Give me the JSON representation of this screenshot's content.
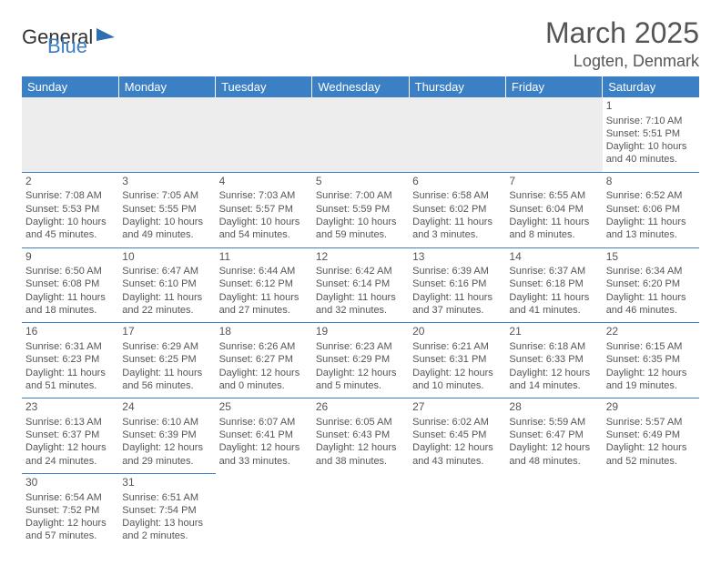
{
  "logo": {
    "general": "General",
    "blue": "Blue"
  },
  "header": {
    "month_title": "March 2025",
    "location": "Logten, Denmark"
  },
  "day_headers": [
    "Sunday",
    "Monday",
    "Tuesday",
    "Wednesday",
    "Thursday",
    "Friday",
    "Saturday"
  ],
  "colors": {
    "header_bg": "#3b7fc4",
    "header_text": "#ffffff",
    "cell_text": "#555555",
    "row_border": "#3b7fc4",
    "empty_bg": "#ededed"
  },
  "weeks": [
    [
      null,
      null,
      null,
      null,
      null,
      null,
      {
        "day": "1",
        "sunrise": "Sunrise: 7:10 AM",
        "sunset": "Sunset: 5:51 PM",
        "daylight1": "Daylight: 10 hours",
        "daylight2": "and 40 minutes."
      }
    ],
    [
      {
        "day": "2",
        "sunrise": "Sunrise: 7:08 AM",
        "sunset": "Sunset: 5:53 PM",
        "daylight1": "Daylight: 10 hours",
        "daylight2": "and 45 minutes."
      },
      {
        "day": "3",
        "sunrise": "Sunrise: 7:05 AM",
        "sunset": "Sunset: 5:55 PM",
        "daylight1": "Daylight: 10 hours",
        "daylight2": "and 49 minutes."
      },
      {
        "day": "4",
        "sunrise": "Sunrise: 7:03 AM",
        "sunset": "Sunset: 5:57 PM",
        "daylight1": "Daylight: 10 hours",
        "daylight2": "and 54 minutes."
      },
      {
        "day": "5",
        "sunrise": "Sunrise: 7:00 AM",
        "sunset": "Sunset: 5:59 PM",
        "daylight1": "Daylight: 10 hours",
        "daylight2": "and 59 minutes."
      },
      {
        "day": "6",
        "sunrise": "Sunrise: 6:58 AM",
        "sunset": "Sunset: 6:02 PM",
        "daylight1": "Daylight: 11 hours",
        "daylight2": "and 3 minutes."
      },
      {
        "day": "7",
        "sunrise": "Sunrise: 6:55 AM",
        "sunset": "Sunset: 6:04 PM",
        "daylight1": "Daylight: 11 hours",
        "daylight2": "and 8 minutes."
      },
      {
        "day": "8",
        "sunrise": "Sunrise: 6:52 AM",
        "sunset": "Sunset: 6:06 PM",
        "daylight1": "Daylight: 11 hours",
        "daylight2": "and 13 minutes."
      }
    ],
    [
      {
        "day": "9",
        "sunrise": "Sunrise: 6:50 AM",
        "sunset": "Sunset: 6:08 PM",
        "daylight1": "Daylight: 11 hours",
        "daylight2": "and 18 minutes."
      },
      {
        "day": "10",
        "sunrise": "Sunrise: 6:47 AM",
        "sunset": "Sunset: 6:10 PM",
        "daylight1": "Daylight: 11 hours",
        "daylight2": "and 22 minutes."
      },
      {
        "day": "11",
        "sunrise": "Sunrise: 6:44 AM",
        "sunset": "Sunset: 6:12 PM",
        "daylight1": "Daylight: 11 hours",
        "daylight2": "and 27 minutes."
      },
      {
        "day": "12",
        "sunrise": "Sunrise: 6:42 AM",
        "sunset": "Sunset: 6:14 PM",
        "daylight1": "Daylight: 11 hours",
        "daylight2": "and 32 minutes."
      },
      {
        "day": "13",
        "sunrise": "Sunrise: 6:39 AM",
        "sunset": "Sunset: 6:16 PM",
        "daylight1": "Daylight: 11 hours",
        "daylight2": "and 37 minutes."
      },
      {
        "day": "14",
        "sunrise": "Sunrise: 6:37 AM",
        "sunset": "Sunset: 6:18 PM",
        "daylight1": "Daylight: 11 hours",
        "daylight2": "and 41 minutes."
      },
      {
        "day": "15",
        "sunrise": "Sunrise: 6:34 AM",
        "sunset": "Sunset: 6:20 PM",
        "daylight1": "Daylight: 11 hours",
        "daylight2": "and 46 minutes."
      }
    ],
    [
      {
        "day": "16",
        "sunrise": "Sunrise: 6:31 AM",
        "sunset": "Sunset: 6:23 PM",
        "daylight1": "Daylight: 11 hours",
        "daylight2": "and 51 minutes."
      },
      {
        "day": "17",
        "sunrise": "Sunrise: 6:29 AM",
        "sunset": "Sunset: 6:25 PM",
        "daylight1": "Daylight: 11 hours",
        "daylight2": "and 56 minutes."
      },
      {
        "day": "18",
        "sunrise": "Sunrise: 6:26 AM",
        "sunset": "Sunset: 6:27 PM",
        "daylight1": "Daylight: 12 hours",
        "daylight2": "and 0 minutes."
      },
      {
        "day": "19",
        "sunrise": "Sunrise: 6:23 AM",
        "sunset": "Sunset: 6:29 PM",
        "daylight1": "Daylight: 12 hours",
        "daylight2": "and 5 minutes."
      },
      {
        "day": "20",
        "sunrise": "Sunrise: 6:21 AM",
        "sunset": "Sunset: 6:31 PM",
        "daylight1": "Daylight: 12 hours",
        "daylight2": "and 10 minutes."
      },
      {
        "day": "21",
        "sunrise": "Sunrise: 6:18 AM",
        "sunset": "Sunset: 6:33 PM",
        "daylight1": "Daylight: 12 hours",
        "daylight2": "and 14 minutes."
      },
      {
        "day": "22",
        "sunrise": "Sunrise: 6:15 AM",
        "sunset": "Sunset: 6:35 PM",
        "daylight1": "Daylight: 12 hours",
        "daylight2": "and 19 minutes."
      }
    ],
    [
      {
        "day": "23",
        "sunrise": "Sunrise: 6:13 AM",
        "sunset": "Sunset: 6:37 PM",
        "daylight1": "Daylight: 12 hours",
        "daylight2": "and 24 minutes."
      },
      {
        "day": "24",
        "sunrise": "Sunrise: 6:10 AM",
        "sunset": "Sunset: 6:39 PM",
        "daylight1": "Daylight: 12 hours",
        "daylight2": "and 29 minutes."
      },
      {
        "day": "25",
        "sunrise": "Sunrise: 6:07 AM",
        "sunset": "Sunset: 6:41 PM",
        "daylight1": "Daylight: 12 hours",
        "daylight2": "and 33 minutes."
      },
      {
        "day": "26",
        "sunrise": "Sunrise: 6:05 AM",
        "sunset": "Sunset: 6:43 PM",
        "daylight1": "Daylight: 12 hours",
        "daylight2": "and 38 minutes."
      },
      {
        "day": "27",
        "sunrise": "Sunrise: 6:02 AM",
        "sunset": "Sunset: 6:45 PM",
        "daylight1": "Daylight: 12 hours",
        "daylight2": "and 43 minutes."
      },
      {
        "day": "28",
        "sunrise": "Sunrise: 5:59 AM",
        "sunset": "Sunset: 6:47 PM",
        "daylight1": "Daylight: 12 hours",
        "daylight2": "and 48 minutes."
      },
      {
        "day": "29",
        "sunrise": "Sunrise: 5:57 AM",
        "sunset": "Sunset: 6:49 PM",
        "daylight1": "Daylight: 12 hours",
        "daylight2": "and 52 minutes."
      }
    ],
    [
      {
        "day": "30",
        "sunrise": "Sunrise: 6:54 AM",
        "sunset": "Sunset: 7:52 PM",
        "daylight1": "Daylight: 12 hours",
        "daylight2": "and 57 minutes."
      },
      {
        "day": "31",
        "sunrise": "Sunrise: 6:51 AM",
        "sunset": "Sunset: 7:54 PM",
        "daylight1": "Daylight: 13 hours",
        "daylight2": "and 2 minutes."
      },
      null,
      null,
      null,
      null,
      null
    ]
  ]
}
